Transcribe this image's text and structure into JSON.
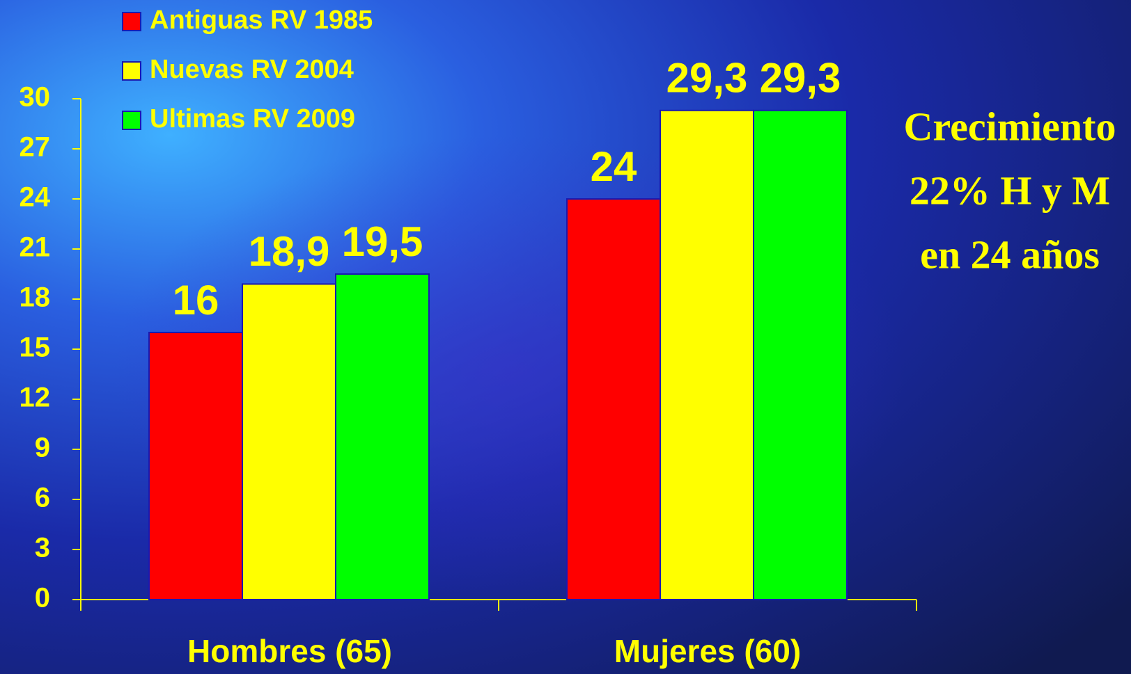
{
  "chart_data": {
    "type": "bar",
    "categories": [
      "Hombres (65)",
      "Mujeres (60)"
    ],
    "series": [
      {
        "name": "Antiguas RV 1985",
        "color": "#ff0000",
        "values": [
          16,
          24
        ],
        "value_labels": [
          "16",
          "24"
        ]
      },
      {
        "name": "Nuevas RV 2004",
        "color": "#ffff00",
        "values": [
          18.9,
          29.3
        ],
        "value_labels": [
          "18,9",
          "29,3"
        ]
      },
      {
        "name": "Ultimas RV 2009",
        "color": "#00ff00",
        "values": [
          19.5,
          29.3
        ],
        "value_labels": [
          "19,5",
          "29,3"
        ]
      }
    ],
    "ylim": [
      0,
      30
    ],
    "yticks": [
      0,
      3,
      6,
      9,
      12,
      15,
      18,
      21,
      24,
      27,
      30
    ],
    "annotation": [
      "Crecimiento",
      "22% H y M",
      "en 24 años"
    ],
    "axis_color": "#ffff00",
    "legend": "top-left"
  }
}
